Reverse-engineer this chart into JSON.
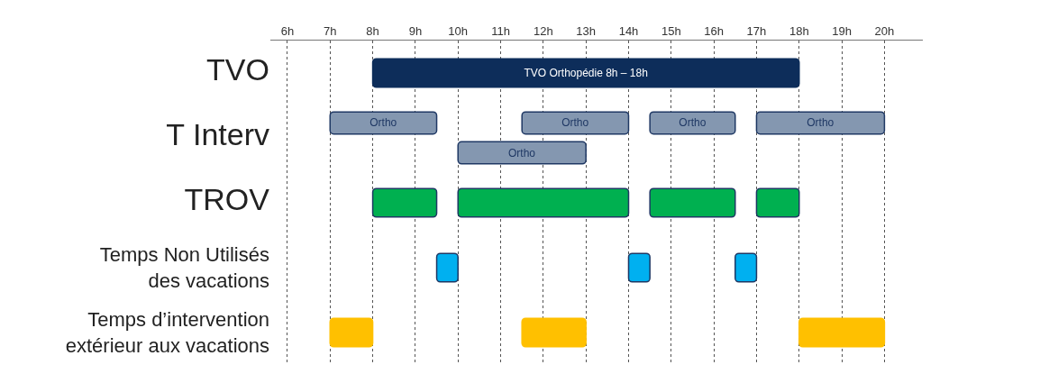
{
  "chart_data": {
    "type": "bar",
    "orientation": "horizontal",
    "categories": [
      "TVO",
      "T Interv",
      "TROV",
      "Temps Non Utilisés des vacations",
      "Temps d’intervention extérieur aux vacations"
    ],
    "series": [
      {
        "values": [
          10,
          2.5,
          1.5,
          0.5,
          1
        ],
        "base": [
          8,
          7,
          8,
          9.5,
          7
        ],
        "colors": [
          "#0d2d5a",
          "#8497b0",
          "#00b050",
          "#00b0f0",
          "#ffc000"
        ],
        "value_labels": [
          "TVO Orthopédie 8h – 18h",
          "Ortho",
          null,
          null,
          null
        ]
      },
      {
        "values": [
          null,
          2.5,
          4,
          0.5,
          1.5
        ],
        "base": [
          null,
          11.5,
          10,
          14,
          11.5
        ],
        "colors": [
          null,
          "#8497b0",
          "#00b050",
          "#00b0f0",
          "#ffc000"
        ],
        "value_labels": [
          null,
          "Ortho",
          null,
          null,
          null
        ]
      },
      {
        "values": [
          null,
          2,
          2,
          0.5,
          2
        ],
        "base": [
          null,
          14.5,
          14.5,
          16.5,
          18
        ],
        "colors": [
          null,
          "#8497b0",
          "#00b050",
          "#00b0f0",
          "#ffc000"
        ],
        "value_labels": [
          null,
          "Ortho",
          null,
          null,
          null
        ]
      },
      {
        "values": [
          null,
          3,
          1,
          null,
          null
        ],
        "base": [
          null,
          17,
          17,
          null,
          null
        ],
        "colors": [
          null,
          "#8497b0",
          "#00b050",
          null,
          null
        ],
        "value_labels": [
          null,
          "Ortho",
          null,
          null,
          null
        ]
      },
      {
        "values": [
          null,
          3,
          null,
          null,
          null
        ],
        "base": [
          null,
          10,
          null,
          null,
          null
        ],
        "colors": [
          null,
          "#8497b0",
          null,
          null,
          null
        ],
        "value_labels": [
          null,
          "Ortho",
          null,
          null,
          null
        ]
      }
    ],
    "xlim": [
      5.6,
      20.9
    ],
    "xticks": [
      {
        "value": 6,
        "label": "6h"
      },
      {
        "value": 7,
        "label": "7h"
      },
      {
        "value": 8,
        "label": "8h"
      },
      {
        "value": 9,
        "label": "9h"
      },
      {
        "value": 10,
        "label": "10h"
      },
      {
        "value": 11,
        "label": "11h"
      },
      {
        "value": 12,
        "label": "12h"
      },
      {
        "value": 13,
        "label": "13h"
      },
      {
        "value": 14,
        "label": "14h"
      },
      {
        "value": 15,
        "label": "15h"
      },
      {
        "value": 16,
        "label": "16h"
      },
      {
        "value": 17,
        "label": "17h"
      },
      {
        "value": 18,
        "label": "18h"
      },
      {
        "value": 19,
        "label": "19h"
      },
      {
        "value": 20,
        "label": "20h"
      }
    ],
    "grid": "x"
  }
}
